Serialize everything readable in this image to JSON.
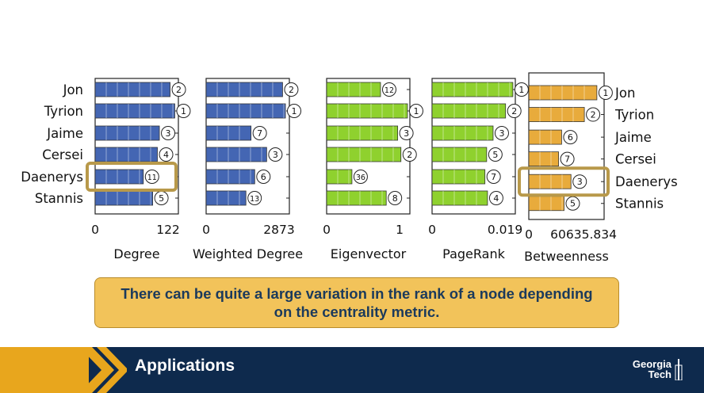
{
  "chart_data": [
    {
      "type": "bar",
      "xlabel": "Degree",
      "xlim": [
        0,
        122
      ],
      "tick_labels": [
        "0",
        "122"
      ],
      "categories": [
        "Jon",
        "Tyrion",
        "Jaime",
        "Cersei",
        "Daenerys",
        "Stannis"
      ],
      "values": [
        112,
        119,
        96,
        93,
        72,
        86
      ],
      "ranks": [
        "2",
        "1",
        "3",
        "4",
        "11",
        "5"
      ],
      "highlight": "Daenerys",
      "color": "#4466b3"
    },
    {
      "type": "bar",
      "xlabel": "Weighted Degree",
      "xlim": [
        0,
        2873
      ],
      "tick_labels": [
        "0",
        "2873"
      ],
      "categories": [
        "Jon",
        "Tyrion",
        "Jaime",
        "Cersei",
        "Daenerys",
        "Stannis"
      ],
      "values": [
        2690,
        2790,
        1580,
        2130,
        1710,
        1400
      ],
      "ranks": [
        "2",
        "1",
        "7",
        "3",
        "6",
        "13"
      ],
      "color": "#4466b3"
    },
    {
      "type": "bar",
      "xlabel": "Eigenvector",
      "xlim": [
        0,
        1
      ],
      "tick_labels": [
        "0",
        "1"
      ],
      "categories": [
        "Jon",
        "Tyrion",
        "Jaime",
        "Cersei",
        "Daenerys",
        "Stannis"
      ],
      "values": [
        0.66,
        0.99,
        0.87,
        0.91,
        0.31,
        0.73
      ],
      "ranks": [
        "12",
        "1",
        "3",
        "2",
        "36",
        "8"
      ],
      "color": "#8fd12e"
    },
    {
      "type": "bar",
      "xlabel": "PageRank",
      "xlim": [
        0,
        0.019
      ],
      "tick_labels": [
        "0",
        "0.019"
      ],
      "categories": [
        "Jon",
        "Tyrion",
        "Jaime",
        "Cersei",
        "Daenerys",
        "Stannis"
      ],
      "values": [
        0.0188,
        0.0171,
        0.0142,
        0.0127,
        0.0123,
        0.0129
      ],
      "ranks": [
        "1",
        "2",
        "3",
        "5",
        "7",
        "4"
      ],
      "color": "#8fd12e"
    },
    {
      "type": "bar",
      "xlabel": "Betweenness",
      "xlim": [
        0,
        60635.834
      ],
      "tick_labels": [
        "0",
        "60635.834"
      ],
      "categories": [
        "Jon",
        "Tyrion",
        "Jaime",
        "Cersei",
        "Daenerys",
        "Stannis"
      ],
      "values": [
        56000,
        45700,
        27000,
        24500,
        34700,
        29000
      ],
      "ranks": [
        "1",
        "2",
        "6",
        "7",
        "3",
        "5"
      ],
      "highlight": "Daenerys",
      "color": "#e8ab3c"
    }
  ],
  "callout": {
    "text": "There can be quite a large variation in the rank of a node depending on the centrality metric."
  },
  "footer": {
    "title": "Applications",
    "logo_line1": "Georgia",
    "logo_line2": "Tech"
  },
  "colors": {
    "footer_bg": "#0e2a4d",
    "footer_accent": "#e8a61d",
    "callout_bg": "#f2c35a",
    "highlight_box": "#b8994a"
  }
}
